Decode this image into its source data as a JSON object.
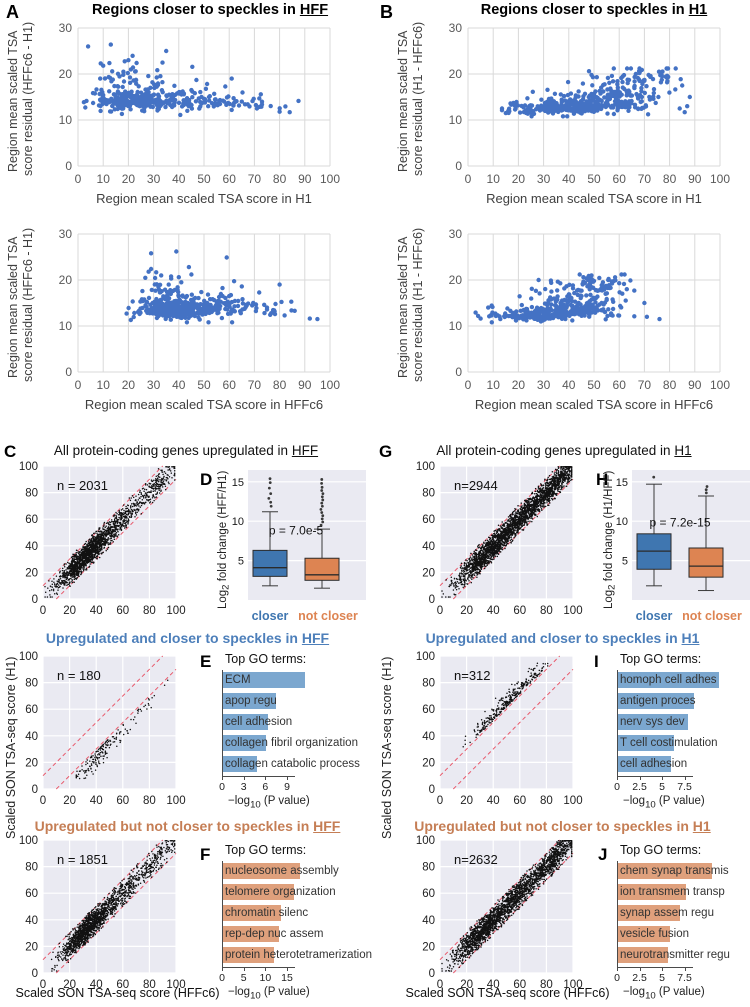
{
  "colors": {
    "scatter_blue": "#4472c4",
    "grid_grey": "#d9d9d9",
    "axis_tick_grey": "#595959",
    "axis_label_grey": "#404040",
    "plot_bg": "#eaeaf2",
    "point_black": "#111111",
    "dashed_red": "#e8596b",
    "title_blue": "#4d7fba",
    "title_orange": "#c57e55",
    "box_blue": "#3f76b0",
    "box_orange": "#dd8452",
    "bar_blue": "#7ba7cf",
    "bar_orange": "#dfa07c"
  },
  "chart_data": [
    {
      "id": "A1",
      "letter": "A",
      "type": "scatter_residual",
      "title": {
        "text": "Regions closer to speckles in ",
        "underlined": "HFF"
      },
      "xlabel": "Region mean scaled TSA score in H1",
      "ylabel_lines": [
        "Region mean scaled TSA",
        "score residual (HFFc6 - H1)"
      ],
      "x_ticks": [
        0,
        10,
        20,
        30,
        40,
        50,
        60,
        70,
        80,
        90,
        100
      ],
      "y_ticks": [
        0,
        10,
        20,
        30
      ],
      "x_range": [
        0,
        100
      ],
      "y_range": [
        0,
        30
      ],
      "clusters": [
        {
          "n": 230,
          "cx": 21,
          "cy": 13.2,
          "sx": 7,
          "sy": 1.6
        },
        {
          "n": 90,
          "cx": 33,
          "cy": 13.5,
          "sx": 9,
          "sy": 2.0
        },
        {
          "n": 60,
          "cx": 50,
          "cy": 13.0,
          "sx": 9,
          "sy": 1.4
        },
        {
          "n": 20,
          "cx": 65,
          "cy": 13.0,
          "sx": 7,
          "sy": 1.2
        },
        {
          "n": 25,
          "cx": 17,
          "cy": 18.5,
          "sx": 5,
          "sy": 2.2
        }
      ],
      "outliers": [
        [
          4,
          26
        ],
        [
          13,
          26.4
        ],
        [
          35,
          25
        ],
        [
          9,
          22.3
        ],
        [
          10,
          21.8
        ],
        [
          20,
          23
        ],
        [
          21,
          21
        ],
        [
          18,
          20.5
        ],
        [
          47,
          18.7
        ],
        [
          61,
          19
        ],
        [
          45,
          16.5
        ],
        [
          52,
          15
        ],
        [
          58,
          14
        ],
        [
          80,
          11.8
        ],
        [
          84,
          11.7
        ],
        [
          71,
          12.5
        ],
        [
          73,
          13.4
        ],
        [
          65,
          14
        ]
      ],
      "clip": {
        "x": [
          2,
          97
        ],
        "y": [
          10.8,
          27
        ]
      }
    },
    {
      "id": "A2",
      "type": "scatter_residual",
      "xlabel": "Region mean scaled TSA score in HFFc6",
      "ylabel_lines": [
        "Region mean scaled TSA",
        "score residual (HFFc6 - H1)"
      ],
      "x_ticks": [
        0,
        10,
        20,
        30,
        40,
        50,
        60,
        70,
        80,
        90,
        100
      ],
      "y_ticks": [
        0,
        10,
        20,
        30
      ],
      "x_range": [
        0,
        100
      ],
      "y_range": [
        0,
        30
      ],
      "clusters": [
        {
          "n": 300,
          "cx": 37,
          "cy": 12.7,
          "sx": 6.5,
          "sy": 1.3
        },
        {
          "n": 100,
          "cx": 50,
          "cy": 12.8,
          "sx": 7,
          "sy": 1.4
        },
        {
          "n": 55,
          "cx": 62,
          "cy": 13.2,
          "sx": 9,
          "sy": 1.6
        },
        {
          "n": 30,
          "cx": 36,
          "cy": 16.5,
          "sx": 5,
          "sy": 1.8
        }
      ],
      "outliers": [
        [
          29,
          25.8
        ],
        [
          39,
          26.2
        ],
        [
          59,
          24.9
        ],
        [
          28,
          21.8
        ],
        [
          29,
          22.4
        ],
        [
          33,
          21
        ],
        [
          37,
          20.3
        ],
        [
          40,
          20.6
        ],
        [
          44,
          22.8
        ],
        [
          45,
          21.2
        ],
        [
          41,
          19.5
        ],
        [
          36,
          19
        ],
        [
          80,
          19
        ],
        [
          65,
          18.6
        ],
        [
          60,
          16.5
        ],
        [
          75,
          14
        ],
        [
          78,
          13.2
        ],
        [
          82,
          12.3
        ],
        [
          86,
          13.3
        ],
        [
          95,
          11.5
        ],
        [
          92,
          11.6
        ],
        [
          74,
          12.8
        ]
      ],
      "clip": {
        "x": [
          18,
          97
        ],
        "y": [
          10.8,
          26.8
        ]
      }
    },
    {
      "id": "B1",
      "letter": "B",
      "type": "scatter_residual",
      "title": {
        "text": "Regions closer to speckles in ",
        "underlined": "H1"
      },
      "xlabel": "Region mean scaled TSA score in H1",
      "ylabel_lines": [
        "Region mean scaled TSA",
        "score residual (H1 - HFFc6)"
      ],
      "x_ticks": [
        0,
        10,
        20,
        30,
        40,
        50,
        60,
        70,
        80,
        90,
        100
      ],
      "y_ticks": [
        0,
        10,
        20,
        30
      ],
      "x_range": [
        0,
        100
      ],
      "y_range": [
        0,
        30
      ],
      "clusters": [
        {
          "n": 170,
          "cx": 33,
          "cy": 12.0,
          "sx": 9,
          "sy": 0.9
        },
        {
          "n": 160,
          "cx": 52,
          "cy": 12.5,
          "sx": 9,
          "sy": 1.3
        },
        {
          "n": 90,
          "cx": 60,
          "cy": 15.0,
          "sx": 10,
          "sy": 2.0
        },
        {
          "n": 40,
          "cx": 68,
          "cy": 18.3,
          "sx": 8,
          "sy": 1.5
        }
      ],
      "outliers": [
        [
          48,
          20.6
        ],
        [
          49,
          19.8
        ],
        [
          69,
          20.9
        ],
        [
          68,
          20.2
        ],
        [
          77,
          19.5
        ],
        [
          79,
          19.6
        ],
        [
          85,
          17.5
        ],
        [
          88,
          15
        ],
        [
          87,
          13
        ],
        [
          84,
          12.5
        ],
        [
          16,
          12
        ],
        [
          15,
          11.5
        ],
        [
          86,
          11.7
        ]
      ],
      "clip": {
        "x": [
          13.5,
          89
        ],
        "y": [
          10.8,
          21.2
        ]
      }
    },
    {
      "id": "B2",
      "type": "scatter_residual",
      "xlabel": "Region mean scaled TSA score in HFFc6",
      "ylabel_lines": [
        "Region mean scaled TSA",
        "score residual (H1 - HFFc6)"
      ],
      "x_ticks": [
        0,
        10,
        20,
        30,
        40,
        50,
        60,
        70,
        80,
        90,
        100
      ],
      "y_ticks": [
        0,
        10,
        20,
        30
      ],
      "x_range": [
        0,
        100
      ],
      "y_range": [
        0,
        30
      ],
      "clusters": [
        {
          "n": 170,
          "cx": 26,
          "cy": 11.8,
          "sx": 9,
          "sy": 0.8
        },
        {
          "n": 150,
          "cx": 42,
          "cy": 12.5,
          "sx": 9,
          "sy": 1.2
        },
        {
          "n": 80,
          "cx": 44,
          "cy": 15.5,
          "sx": 9,
          "sy": 1.8
        },
        {
          "n": 35,
          "cx": 52,
          "cy": 18.5,
          "sx": 7,
          "sy": 1.2
        }
      ],
      "outliers": [
        [
          28,
          20
        ],
        [
          33,
          19.4
        ],
        [
          48,
          20.5
        ],
        [
          49,
          21
        ],
        [
          50,
          19.8
        ],
        [
          57,
          19.7
        ],
        [
          60,
          19.3
        ],
        [
          63,
          18
        ],
        [
          66,
          17.7
        ],
        [
          70,
          15
        ],
        [
          71,
          12
        ],
        [
          76,
          11.5
        ],
        [
          4,
          12.2
        ],
        [
          5,
          11.6
        ],
        [
          66,
          12.1
        ]
      ],
      "clip": {
        "x": [
          3,
          77
        ],
        "y": [
          10.8,
          21.2
        ]
      }
    },
    {
      "id": "C1",
      "letter": "C",
      "type": "scatter_diag",
      "title": {
        "text": "All protein-coding genes upregulated in ",
        "underlined": "HFF"
      },
      "n_label": "n = 2031",
      "n_value": 2031,
      "ticks": [
        0,
        20,
        40,
        60,
        80,
        100
      ],
      "range": [
        0,
        100
      ],
      "dashed_line_offsets": [
        10,
        -10
      ],
      "x_clusters": [
        {
          "n": 1250,
          "cx": 30,
          "sx": 10
        },
        {
          "n": 560,
          "cx": 52,
          "sx": 13
        },
        {
          "n": 221,
          "cx": 86,
          "sx": 9
        }
      ],
      "offset": {
        "mode": "band",
        "sd": 5,
        "clip": 11.5
      }
    },
    {
      "id": "C2",
      "type": "scatter_diag",
      "title": {
        "text": "Upregulated and closer to speckles in ",
        "underlined": "HFF",
        "color_key": "title_blue"
      },
      "n_label": "n = 180",
      "n_value": 180,
      "ylabel": "Scaled SON TSA-seq score (H1)",
      "ticks": [
        0,
        20,
        40,
        60,
        80,
        100
      ],
      "range": [
        0,
        100
      ],
      "dashed_line_offsets": [
        10,
        -10
      ],
      "x_clusters": [
        {
          "n": 120,
          "cx": 40,
          "sx": 7
        },
        {
          "n": 60,
          "cx": 62,
          "sx": 13
        }
      ],
      "offset": {
        "mode": "below",
        "base": 11.5,
        "spread": 6
      },
      "clip_x": [
        25,
        99
      ]
    },
    {
      "id": "C3",
      "type": "scatter_diag",
      "title": {
        "text": "Upregulated but not closer to speckles in ",
        "underlined": "HFF",
        "color_key": "title_orange"
      },
      "n_label": "n = 1851",
      "n_value": 1851,
      "xlabel": "Scaled SON TSA-seq score (HFFc6)",
      "ticks": [
        0,
        20,
        40,
        60,
        80,
        100
      ],
      "range": [
        0,
        100
      ],
      "dashed_line_offsets": [
        10,
        -10
      ],
      "x_clusters": [
        {
          "n": 1150,
          "cx": 32,
          "sx": 9
        },
        {
          "n": 500,
          "cx": 55,
          "sx": 13
        },
        {
          "n": 201,
          "cx": 86,
          "sx": 8
        }
      ],
      "offset": {
        "mode": "band",
        "sd": 5,
        "clip": 11
      }
    },
    {
      "id": "D",
      "letter": "D",
      "type": "box",
      "ylabel": {
        "pre": "Log",
        "sub": "2",
        "post": " fold change (HFF/H1)"
      },
      "p_label": "p = 7.0e-5",
      "p_y": 8.3,
      "y_ticks": [
        5,
        10,
        15
      ],
      "y_max": 16.5,
      "groups": [
        {
          "name": "closer",
          "color_key": "box_blue",
          "whisker_low": 1.8,
          "q1": 3.0,
          "median": 4.1,
          "q3": 6.3,
          "whisker_high": 11.2,
          "outliers": [
            11.9,
            12.4,
            12.9,
            13.5,
            14.2,
            14.9,
            15.4
          ]
        },
        {
          "name": "not closer",
          "color_key": "box_orange",
          "whisker_low": 1.5,
          "q1": 2.5,
          "median": 3.2,
          "q3": 5.3,
          "whisker_high": 9.0,
          "outliers": [
            9.5,
            9.9,
            10.3,
            10.7,
            11.1,
            11.5,
            11.9,
            12.3,
            12.7,
            13.1,
            13.5,
            13.9,
            14.3,
            14.8,
            15.3
          ]
        }
      ]
    },
    {
      "id": "E",
      "letter": "E",
      "type": "go_bars",
      "heading": "Top GO terms:",
      "color_key": "bar_blue",
      "terms": [
        "ECM",
        "apop regu",
        "cell adhesion",
        "collagen fibril organization",
        "collagen catabolic process"
      ],
      "values": [
        11.3,
        7.3,
        6.2,
        5.9,
        4.7
      ],
      "ticks": [
        0,
        3,
        6,
        9
      ],
      "xlabel": {
        "pre": "−log",
        "sub": "10",
        "post": " (P value)"
      }
    },
    {
      "id": "F",
      "letter": "F",
      "type": "go_bars",
      "heading": "Top GO terms:",
      "color_key": "bar_orange",
      "terms": [
        "nucleosome assembly",
        "telomere organization",
        "chromatin silenc",
        "rep-dep nuc assem",
        "protein heterotetramerization"
      ],
      "values": [
        17.8,
        16.3,
        13.4,
        13.0,
        11.7
      ],
      "ticks": [
        0,
        5,
        10,
        15
      ],
      "xlabel": {
        "pre": "−log",
        "sub": "10",
        "post": " (P value)"
      }
    },
    {
      "id": "G1",
      "letter": "G",
      "type": "scatter_diag",
      "title": {
        "text": "All protein-coding genes upregulated in ",
        "underlined": "H1"
      },
      "n_label": "n=2944",
      "n_value": 2944,
      "ticks": [
        0,
        20,
        40,
        60,
        80,
        100
      ],
      "range": [
        0,
        100
      ],
      "dashed_line_offsets": [
        10,
        -10
      ],
      "x_clusters": [
        {
          "n": 1000,
          "cx": 32,
          "sx": 11
        },
        {
          "n": 1200,
          "cx": 58,
          "sx": 14
        },
        {
          "n": 744,
          "cx": 86,
          "sx": 9
        }
      ],
      "offset": {
        "mode": "band",
        "sd": 5.2,
        "clip": 11.5
      }
    },
    {
      "id": "G2",
      "type": "scatter_diag",
      "title": {
        "text": "Upregulated and closer to speckles in ",
        "underlined": "H1",
        "color_key": "title_blue"
      },
      "n_label": "n=312",
      "n_value": 312,
      "ylabel": "Scaled SON TSA-seq score (H1)",
      "ticks": [
        0,
        20,
        40,
        60,
        80,
        100
      ],
      "range": [
        0,
        100
      ],
      "dashed_line_offsets": [
        10,
        -10
      ],
      "x_clusters": [
        {
          "n": 230,
          "cx": 45,
          "sx": 11
        },
        {
          "n": 82,
          "cx": 66,
          "sx": 9
        }
      ],
      "offset": {
        "mode": "above",
        "base": 11.5,
        "spread": 5
      },
      "clip_x": [
        17,
        81
      ]
    },
    {
      "id": "G3",
      "type": "scatter_diag",
      "title": {
        "text": "Upregulated but not closer to speckles in ",
        "underlined": "H1",
        "color_key": "title_orange"
      },
      "n_label": "n=2632",
      "n_value": 2632,
      "xlabel": "Scaled SON TSA-seq score (HFFc6)",
      "ticks": [
        0,
        20,
        40,
        60,
        80,
        100
      ],
      "range": [
        0,
        100
      ],
      "dashed_line_offsets": [
        10,
        -10
      ],
      "x_clusters": [
        {
          "n": 950,
          "cx": 30,
          "sx": 10
        },
        {
          "n": 1050,
          "cx": 56,
          "sx": 14
        },
        {
          "n": 632,
          "cx": 86,
          "sx": 9
        }
      ],
      "offset": {
        "mode": "band",
        "sd": 5.2,
        "clip": 11.5
      }
    },
    {
      "id": "H",
      "letter": "H",
      "type": "box",
      "ylabel": {
        "pre": "Log",
        "sub": "2",
        "post": " fold change (H1/HFF)"
      },
      "p_label": "p = 7.2e-15",
      "p_y": 9.3,
      "y_ticks": [
        5,
        10,
        15
      ],
      "y_max": 16.5,
      "groups": [
        {
          "name": "closer",
          "color_key": "box_blue",
          "whisker_low": 1.8,
          "q1": 3.9,
          "median": 6.2,
          "q3": 8.4,
          "whisker_high": 14.7,
          "outliers": [
            15.6
          ]
        },
        {
          "name": "not closer",
          "color_key": "box_orange",
          "whisker_low": 1.2,
          "q1": 2.9,
          "median": 4.3,
          "q3": 6.6,
          "whisker_high": 13.2,
          "outliers": [
            13.6,
            14.0,
            14.4
          ]
        }
      ]
    },
    {
      "id": "I",
      "letter": "I",
      "type": "go_bars",
      "heading": "Top GO terms:",
      "color_key": "bar_blue",
      "terms": [
        "homoph cell adhes",
        "antigen proces",
        "nerv sys dev",
        "T cell costimulation",
        "cell adhesion"
      ],
      "values": [
        11.2,
        8.4,
        7.8,
        6.2,
        5.9
      ],
      "ticks": [
        0,
        2.5,
        5,
        7.5
      ],
      "xlabel": {
        "pre": "−log",
        "sub": "10",
        "post": " (P value)"
      }
    },
    {
      "id": "J",
      "letter": "J",
      "type": "go_bars",
      "heading": "Top GO terms:",
      "color_key": "bar_orange",
      "terms": [
        "chem synap transmis",
        "ion transmem transp",
        "synap assem regu",
        "vesicle fusion",
        "neurotransmitter regu"
      ],
      "values": [
        10.4,
        7.5,
        6.9,
        5.8,
        5.5
      ],
      "ticks": [
        0,
        2.5,
        5,
        7.5
      ],
      "xlabel": {
        "pre": "−log",
        "sub": "10",
        "post": " (P value)"
      }
    }
  ]
}
